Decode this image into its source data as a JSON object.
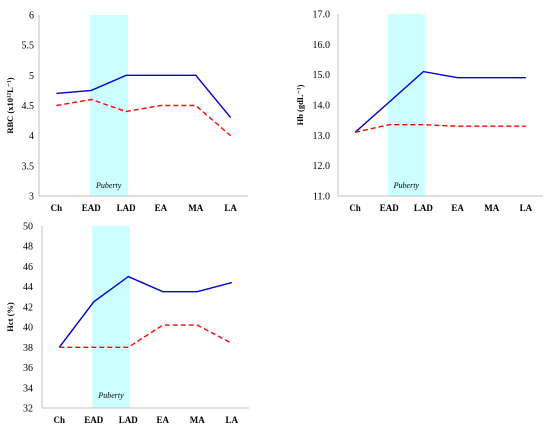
{
  "chart_data": [
    {
      "type": "line",
      "ylabel": "RBC (x10¹²L⁻¹)",
      "categories": [
        "Ch",
        "EAD",
        "LAD",
        "EA",
        "MA",
        "LA"
      ],
      "ylim": [
        3,
        6
      ],
      "yticks": [
        "3",
        "3.5",
        "4",
        "4.5",
        "5",
        "5.5",
        "6"
      ],
      "yticks_values": [
        3,
        3.5,
        4,
        4.5,
        5,
        5.5,
        6
      ],
      "grid": false,
      "band": {
        "from": "EAD",
        "to": "LAD",
        "label": "Puberty",
        "color": "#ccffff"
      },
      "series": [
        {
          "values": [
            4.7,
            4.75,
            5.0,
            5.0,
            5.0,
            4.3
          ],
          "color": "#0000cc",
          "style": "solid"
        },
        {
          "values": [
            4.5,
            4.6,
            4.4,
            4.5,
            4.5,
            4.0
          ],
          "color": "#ff0000",
          "style": "dashed"
        }
      ]
    },
    {
      "type": "line",
      "ylabel": "Hb (gdL⁻¹)",
      "categories": [
        "Ch",
        "EAD",
        "LAD",
        "EA",
        "MA",
        "LA"
      ],
      "ylim": [
        11,
        17
      ],
      "yticks": [
        "11.0",
        "12.0",
        "13.0",
        "14.0",
        "15.0",
        "16.0",
        "17.0"
      ],
      "yticks_values": [
        11,
        12,
        13,
        14,
        15,
        16,
        17
      ],
      "grid": false,
      "band": {
        "from": "EAD",
        "to": "LAD",
        "label": "Puberty",
        "color": "#ccffff"
      },
      "series": [
        {
          "values": [
            13.1,
            14.1,
            15.1,
            14.9,
            14.9,
            14.9
          ],
          "color": "#0000cc",
          "style": "solid"
        },
        {
          "values": [
            13.1,
            13.35,
            13.35,
            13.3,
            13.3,
            13.3
          ],
          "color": "#ff0000",
          "style": "dashed"
        }
      ]
    },
    {
      "type": "line",
      "ylabel": "Hct (%)",
      "categories": [
        "Ch",
        "EAD",
        "LAD",
        "EA",
        "MA",
        "LA"
      ],
      "ylim": [
        32,
        50
      ],
      "yticks": [
        "32",
        "34",
        "36",
        "38",
        "40",
        "42",
        "44",
        "46",
        "48",
        "50"
      ],
      "yticks_values": [
        32,
        34,
        36,
        38,
        40,
        42,
        44,
        46,
        48,
        50
      ],
      "grid": false,
      "band": {
        "from": "EAD",
        "to": "LAD",
        "label": "Puberty",
        "color": "#ccffff"
      },
      "series": [
        {
          "values": [
            38.0,
            42.5,
            45.0,
            43.5,
            43.5,
            44.4
          ],
          "color": "#0000cc",
          "style": "solid"
        },
        {
          "values": [
            38.0,
            38.0,
            38.0,
            40.2,
            40.2,
            38.4
          ],
          "color": "#ff0000",
          "style": "dashed"
        }
      ]
    }
  ]
}
